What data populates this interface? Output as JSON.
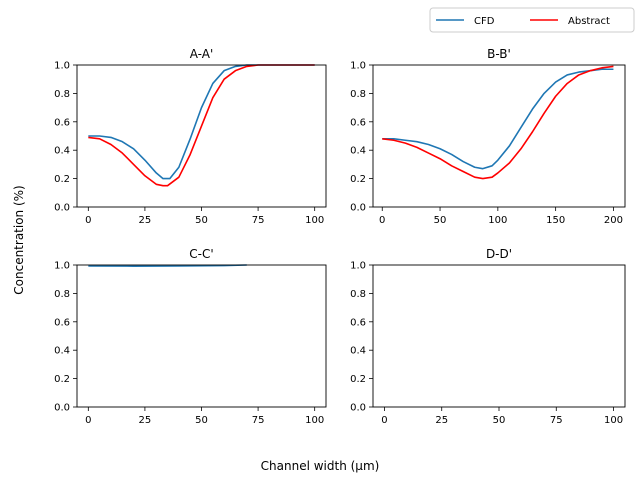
{
  "figure": {
    "xlabel": "Channel width (μm)",
    "ylabel": "Concentration (%)",
    "legend": {
      "placement": "top-right",
      "entries": [
        {
          "name": "CFD",
          "color": "#1f77b4"
        },
        {
          "name": "Abstract",
          "color": "#ff0000"
        }
      ]
    }
  },
  "chart_data": [
    {
      "type": "line",
      "title": "A-A'",
      "xlim": [
        -5,
        105
      ],
      "ylim": [
        0,
        1
      ],
      "xticks": [
        0,
        25,
        50,
        75,
        100
      ],
      "yticks": [
        0.0,
        0.2,
        0.4,
        0.6,
        0.8,
        1.0
      ],
      "series": [
        {
          "name": "CFD",
          "color": "#1f77b4",
          "x": [
            0,
            5,
            10,
            15,
            20,
            25,
            30,
            33,
            36,
            40,
            45,
            50,
            55,
            60,
            65,
            70,
            75,
            80,
            90,
            100
          ],
          "y": [
            0.5,
            0.5,
            0.49,
            0.46,
            0.41,
            0.33,
            0.24,
            0.2,
            0.2,
            0.28,
            0.48,
            0.7,
            0.87,
            0.96,
            0.99,
            1.0,
            1.0,
            1.0,
            1.0,
            1.0
          ]
        },
        {
          "name": "Abstract",
          "color": "#ff0000",
          "x": [
            0,
            5,
            10,
            15,
            20,
            25,
            30,
            33,
            35,
            40,
            45,
            50,
            55,
            60,
            65,
            70,
            75,
            80,
            90,
            100
          ],
          "y": [
            0.49,
            0.48,
            0.44,
            0.38,
            0.3,
            0.22,
            0.16,
            0.15,
            0.15,
            0.21,
            0.37,
            0.57,
            0.77,
            0.9,
            0.96,
            0.99,
            1.0,
            1.0,
            1.0,
            1.0
          ]
        }
      ]
    },
    {
      "type": "line",
      "title": "B-B'",
      "xlim": [
        -8,
        210
      ],
      "ylim": [
        0,
        1
      ],
      "xticks": [
        0,
        50,
        100,
        150,
        200
      ],
      "yticks": [
        0.0,
        0.2,
        0.4,
        0.6,
        0.8,
        1.0
      ],
      "series": [
        {
          "name": "CFD",
          "color": "#1f77b4",
          "x": [
            0,
            10,
            20,
            30,
            40,
            50,
            60,
            70,
            80,
            87,
            95,
            100,
            110,
            120,
            130,
            140,
            150,
            160,
            170,
            180,
            190,
            200
          ],
          "y": [
            0.48,
            0.48,
            0.47,
            0.46,
            0.44,
            0.41,
            0.37,
            0.32,
            0.28,
            0.27,
            0.29,
            0.33,
            0.43,
            0.56,
            0.69,
            0.8,
            0.88,
            0.93,
            0.95,
            0.96,
            0.97,
            0.97
          ]
        },
        {
          "name": "Abstract",
          "color": "#ff0000",
          "x": [
            0,
            10,
            20,
            30,
            40,
            50,
            60,
            70,
            80,
            87,
            95,
            100,
            110,
            120,
            130,
            140,
            150,
            160,
            170,
            180,
            190,
            200
          ],
          "y": [
            0.48,
            0.47,
            0.45,
            0.42,
            0.38,
            0.34,
            0.29,
            0.25,
            0.21,
            0.2,
            0.21,
            0.24,
            0.31,
            0.41,
            0.53,
            0.66,
            0.78,
            0.87,
            0.93,
            0.96,
            0.98,
            0.99
          ]
        }
      ]
    },
    {
      "type": "line",
      "title": "C-C'",
      "xlim": [
        -5,
        105
      ],
      "ylim": [
        0,
        1
      ],
      "xticks": [
        0,
        25,
        50,
        75,
        100
      ],
      "yticks": [
        0.0,
        0.2,
        0.4,
        0.6,
        0.8,
        1.0
      ],
      "series": [
        {
          "name": "CFD",
          "color": "#1f77b4",
          "x": [
            0,
            20,
            40,
            60,
            70
          ],
          "y": [
            0.993,
            0.992,
            0.993,
            0.996,
            1.0
          ]
        }
      ]
    },
    {
      "type": "line",
      "title": "D-D'",
      "xlim": [
        -5,
        105
      ],
      "ylim": [
        0,
        1
      ],
      "xticks": [
        0,
        25,
        50,
        75,
        100
      ],
      "yticks": [
        0.0,
        0.2,
        0.4,
        0.6,
        0.8,
        1.0
      ],
      "series": []
    }
  ]
}
